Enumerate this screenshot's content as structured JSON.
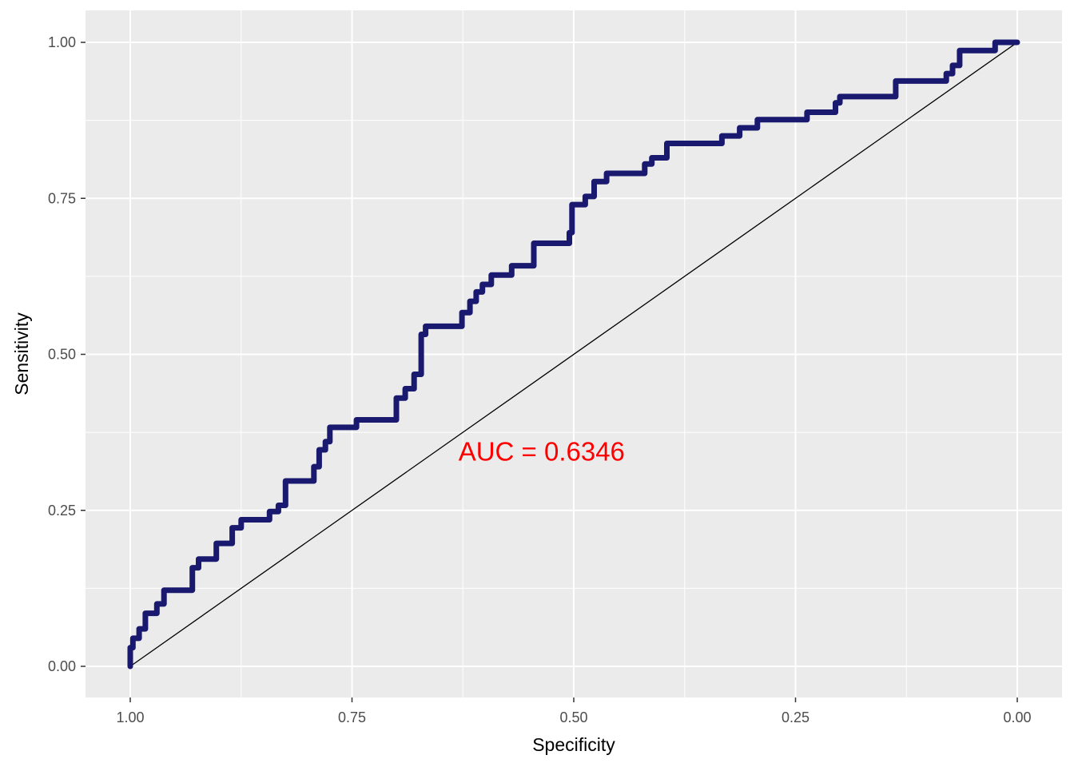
{
  "chart_data": {
    "type": "line",
    "title": "",
    "xlabel": "Specificity",
    "ylabel": "Sensitivity",
    "x_reversed": true,
    "xlim": [
      1.0,
      0.0
    ],
    "ylim": [
      0.0,
      1.0
    ],
    "x_ticks": [
      "1.00",
      "0.75",
      "0.50",
      "0.25",
      "0.00"
    ],
    "y_ticks": [
      "0.00",
      "0.25",
      "0.50",
      "0.75",
      "1.00"
    ],
    "grid": true,
    "colors": {
      "panel_background": "#EBEBEB",
      "grid": "#FFFFFF",
      "roc_curve": "#191970",
      "diagonal": "#000000",
      "annotation": "#FF0000"
    },
    "series": [
      {
        "values": [
          [
            1.0,
            0.0
          ],
          [
            1.0,
            0.03
          ],
          [
            0.997,
            0.03
          ],
          [
            0.997,
            0.045
          ],
          [
            0.99,
            0.045
          ],
          [
            0.99,
            0.06
          ],
          [
            0.983,
            0.06
          ],
          [
            0.983,
            0.085
          ],
          [
            0.97,
            0.085
          ],
          [
            0.97,
            0.1
          ],
          [
            0.962,
            0.1
          ],
          [
            0.962,
            0.122
          ],
          [
            0.93,
            0.122
          ],
          [
            0.93,
            0.158
          ],
          [
            0.923,
            0.158
          ],
          [
            0.923,
            0.172
          ],
          [
            0.903,
            0.172
          ],
          [
            0.903,
            0.197
          ],
          [
            0.885,
            0.197
          ],
          [
            0.885,
            0.222
          ],
          [
            0.875,
            0.222
          ],
          [
            0.875,
            0.235
          ],
          [
            0.843,
            0.235
          ],
          [
            0.843,
            0.248
          ],
          [
            0.833,
            0.248
          ],
          [
            0.833,
            0.258
          ],
          [
            0.825,
            0.258
          ],
          [
            0.825,
            0.297
          ],
          [
            0.793,
            0.297
          ],
          [
            0.793,
            0.32
          ],
          [
            0.787,
            0.32
          ],
          [
            0.787,
            0.347
          ],
          [
            0.78,
            0.347
          ],
          [
            0.78,
            0.36
          ],
          [
            0.775,
            0.36
          ],
          [
            0.775,
            0.383
          ],
          [
            0.745,
            0.383
          ],
          [
            0.745,
            0.395
          ],
          [
            0.7,
            0.395
          ],
          [
            0.7,
            0.43
          ],
          [
            0.69,
            0.43
          ],
          [
            0.69,
            0.445
          ],
          [
            0.68,
            0.445
          ],
          [
            0.68,
            0.468
          ],
          [
            0.672,
            0.468
          ],
          [
            0.672,
            0.532
          ],
          [
            0.667,
            0.532
          ],
          [
            0.667,
            0.545
          ],
          [
            0.626,
            0.545
          ],
          [
            0.626,
            0.567
          ],
          [
            0.617,
            0.567
          ],
          [
            0.617,
            0.585
          ],
          [
            0.61,
            0.585
          ],
          [
            0.61,
            0.6
          ],
          [
            0.603,
            0.6
          ],
          [
            0.603,
            0.612
          ],
          [
            0.593,
            0.612
          ],
          [
            0.593,
            0.627
          ],
          [
            0.57,
            0.627
          ],
          [
            0.57,
            0.642
          ],
          [
            0.545,
            0.642
          ],
          [
            0.545,
            0.678
          ],
          [
            0.505,
            0.678
          ],
          [
            0.505,
            0.695
          ],
          [
            0.502,
            0.695
          ],
          [
            0.502,
            0.74
          ],
          [
            0.487,
            0.74
          ],
          [
            0.487,
            0.753
          ],
          [
            0.477,
            0.753
          ],
          [
            0.477,
            0.777
          ],
          [
            0.463,
            0.777
          ],
          [
            0.463,
            0.79
          ],
          [
            0.42,
            0.79
          ],
          [
            0.42,
            0.805
          ],
          [
            0.412,
            0.805
          ],
          [
            0.412,
            0.815
          ],
          [
            0.395,
            0.815
          ],
          [
            0.395,
            0.838
          ],
          [
            0.333,
            0.838
          ],
          [
            0.333,
            0.85
          ],
          [
            0.313,
            0.85
          ],
          [
            0.313,
            0.863
          ],
          [
            0.293,
            0.863
          ],
          [
            0.293,
            0.876
          ],
          [
            0.237,
            0.876
          ],
          [
            0.237,
            0.888
          ],
          [
            0.205,
            0.888
          ],
          [
            0.205,
            0.903
          ],
          [
            0.2,
            0.903
          ],
          [
            0.2,
            0.913
          ],
          [
            0.137,
            0.913
          ],
          [
            0.137,
            0.938
          ],
          [
            0.08,
            0.938
          ],
          [
            0.08,
            0.95
          ],
          [
            0.073,
            0.95
          ],
          [
            0.073,
            0.963
          ],
          [
            0.065,
            0.963
          ],
          [
            0.065,
            0.987
          ],
          [
            0.025,
            0.987
          ],
          [
            0.025,
            1.0
          ],
          [
            0.0,
            1.0
          ]
        ]
      }
    ],
    "reference_line": [
      [
        1.0,
        0.0
      ],
      [
        0.0,
        1.0
      ]
    ],
    "annotations": [
      {
        "text": "AUC = 0.6346",
        "x": 0.63,
        "y": 0.345,
        "anchor": "start"
      }
    ]
  }
}
